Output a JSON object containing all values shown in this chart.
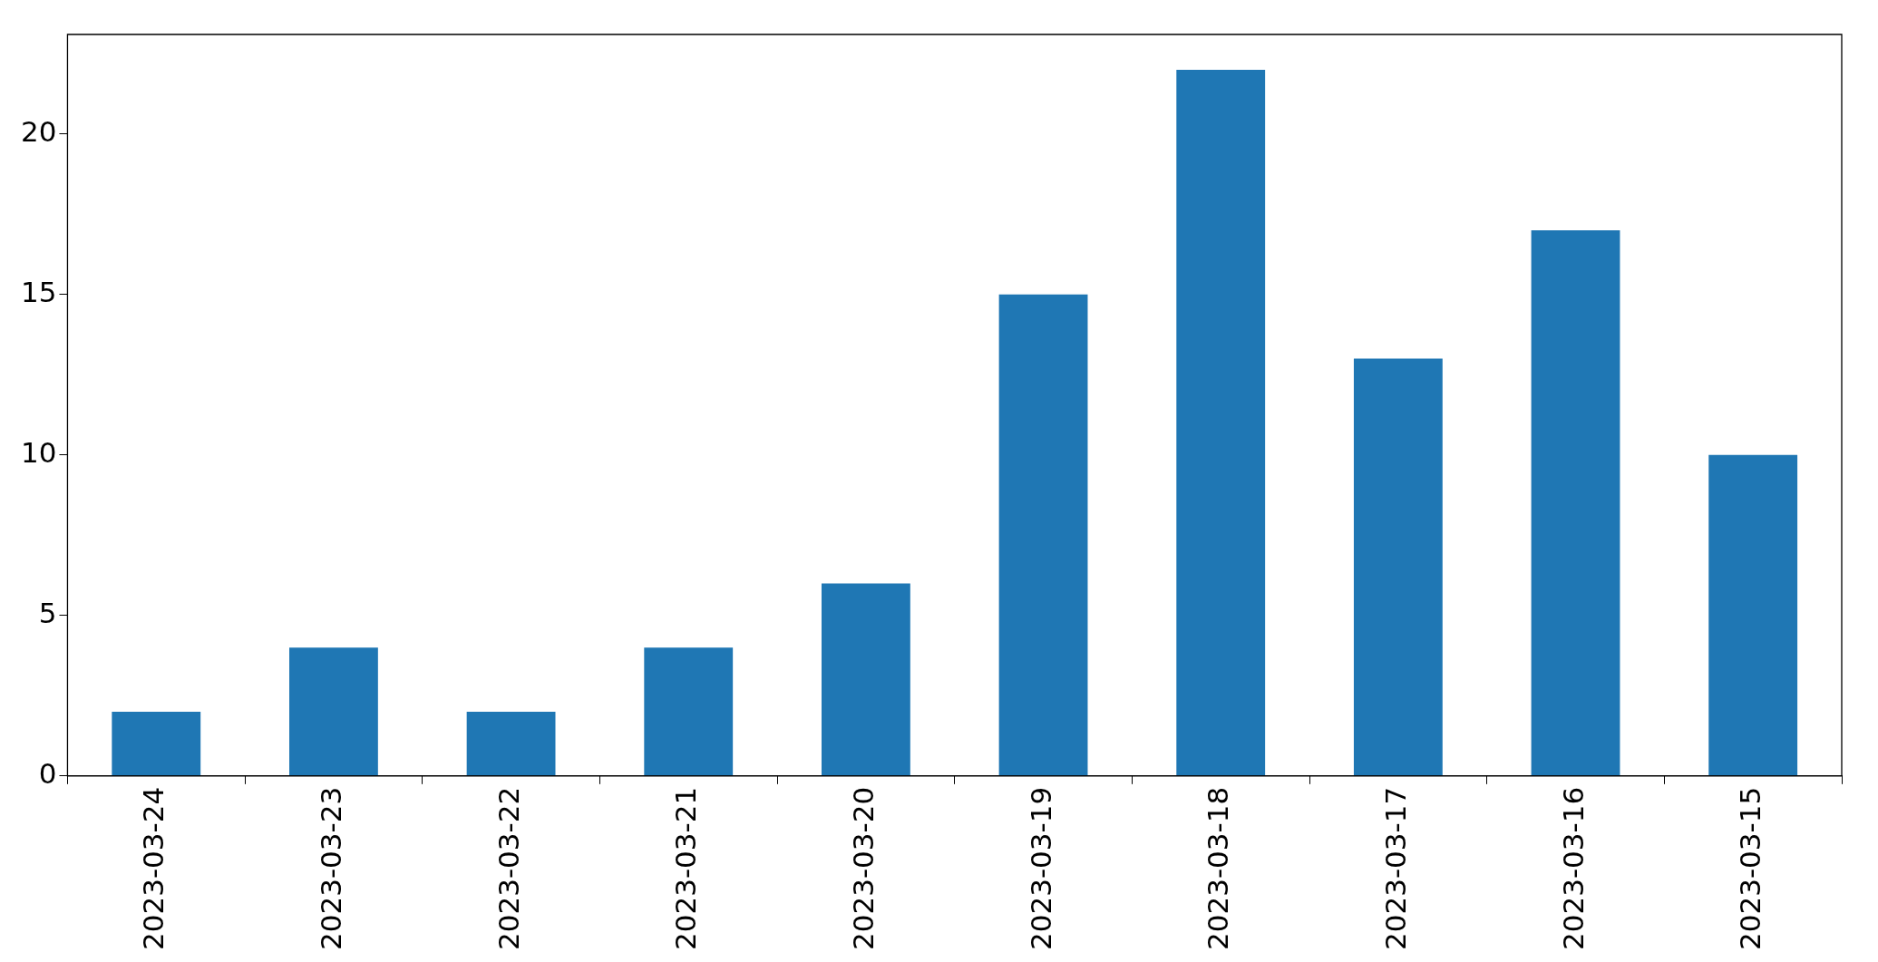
{
  "chart_data": {
    "type": "bar",
    "categories": [
      "2023-03-24",
      "2023-03-23",
      "2023-03-22",
      "2023-03-21",
      "2023-03-20",
      "2023-03-19",
      "2023-03-18",
      "2023-03-17",
      "2023-03-16",
      "2023-03-15"
    ],
    "values": [
      2,
      4,
      2,
      4,
      6,
      15,
      22,
      13,
      17,
      10
    ],
    "color": "#1f77b4",
    "ylim": [
      0,
      23.1
    ],
    "yticks": [
      0,
      5,
      10,
      15,
      20
    ],
    "grid": false,
    "legend": false
  }
}
